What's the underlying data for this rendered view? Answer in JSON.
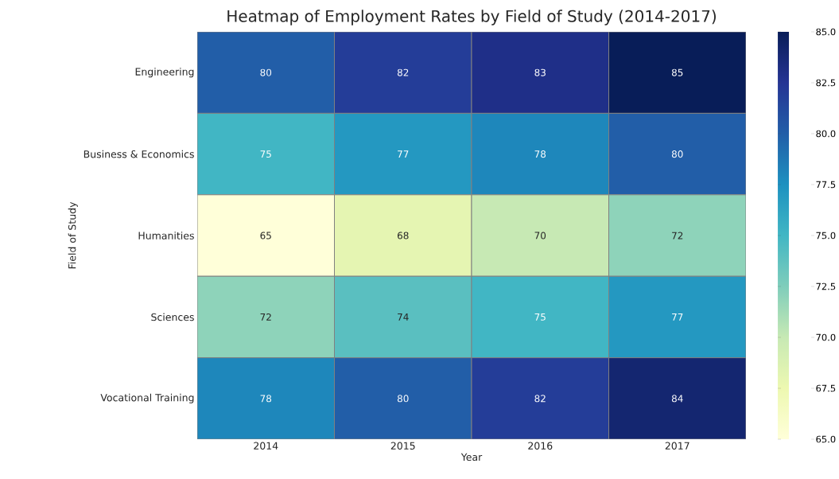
{
  "chart_data": {
    "type": "heatmap",
    "title": "Heatmap of Employment Rates by Field of Study (2014-2017)",
    "xlabel": "Year",
    "ylabel": "Field of Study",
    "categories": [
      "2014",
      "2015",
      "2016",
      "2017"
    ],
    "y_categories": [
      "Engineering",
      "Business & Economics",
      "Humanities",
      "Sciences",
      "Vocational Training"
    ],
    "cells": [
      [
        80,
        82,
        83,
        85
      ],
      [
        75,
        77,
        78,
        80
      ],
      [
        65,
        68,
        70,
        72
      ],
      [
        72,
        74,
        75,
        77
      ],
      [
        78,
        80,
        82,
        84
      ]
    ],
    "data_labels": true,
    "clim": [
      65,
      85
    ],
    "cticks": [
      {
        "value": 65,
        "label": "65.0"
      },
      {
        "value": 67.5,
        "label": "67.5"
      },
      {
        "value": 70,
        "label": "70.0"
      },
      {
        "value": 72.5,
        "label": "72.5"
      },
      {
        "value": 75,
        "label": "75.0"
      },
      {
        "value": 77.5,
        "label": "77.5"
      },
      {
        "value": 80,
        "label": "80.0"
      },
      {
        "value": 82.5,
        "label": "82.5"
      },
      {
        "value": 85,
        "label": "85.0"
      }
    ]
  }
}
